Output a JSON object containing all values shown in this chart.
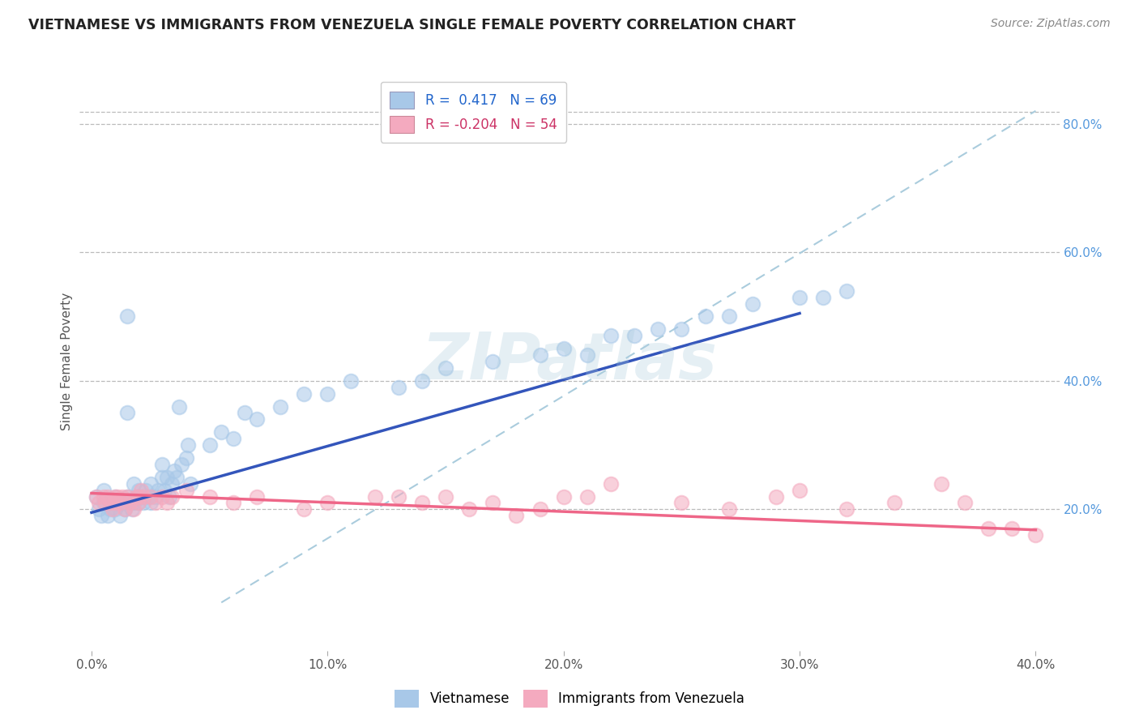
{
  "title": "VIETNAMESE VS IMMIGRANTS FROM VENEZUELA SINGLE FEMALE POVERTY CORRELATION CHART",
  "source": "Source: ZipAtlas.com",
  "ylabel": "Single Female Poverty",
  "xlim": [
    -0.005,
    0.41
  ],
  "ylim": [
    -0.02,
    0.88
  ],
  "xtick_labels": [
    "0.0%",
    "10.0%",
    "20.0%",
    "30.0%",
    "40.0%"
  ],
  "xtick_vals": [
    0.0,
    0.1,
    0.2,
    0.3,
    0.4
  ],
  "ytick_labels": [
    "20.0%",
    "40.0%",
    "60.0%",
    "80.0%"
  ],
  "ytick_vals": [
    0.2,
    0.4,
    0.6,
    0.8
  ],
  "legend_r1": "R =  0.417   N = 69",
  "legend_r2": "R = -0.204   N = 54",
  "color_blue": "#A8C8E8",
  "color_pink": "#F4AABF",
  "color_blue_line": "#3355BB",
  "color_pink_line": "#EE6688",
  "color_dashed": "#AACCDD",
  "watermark_text": "ZIPatlas",
  "background_color": "#FFFFFF",
  "grid_color": "#BBBBBB",
  "viet_blue_line_x0": 0.0,
  "viet_blue_line_y0": 0.195,
  "viet_blue_line_x1": 0.3,
  "viet_blue_line_y1": 0.505,
  "ven_pink_line_x0": 0.0,
  "ven_pink_line_y0": 0.225,
  "ven_pink_line_x1": 0.4,
  "ven_pink_line_y1": 0.168,
  "dash_line_x0": 0.055,
  "dash_line_y0": 0.055,
  "dash_line_x1": 0.4,
  "dash_line_y1": 0.82,
  "vietnamese_x": [
    0.002,
    0.003,
    0.004,
    0.005,
    0.005,
    0.007,
    0.008,
    0.009,
    0.01,
    0.01,
    0.012,
    0.013,
    0.014,
    0.015,
    0.015,
    0.015,
    0.017,
    0.018,
    0.018,
    0.019,
    0.02,
    0.02,
    0.021,
    0.022,
    0.023,
    0.024,
    0.025,
    0.025,
    0.027,
    0.028,
    0.03,
    0.03,
    0.031,
    0.032,
    0.033,
    0.034,
    0.035,
    0.036,
    0.037,
    0.038,
    0.04,
    0.041,
    0.042,
    0.05,
    0.055,
    0.06,
    0.065,
    0.07,
    0.08,
    0.09,
    0.1,
    0.11,
    0.13,
    0.14,
    0.15,
    0.17,
    0.19,
    0.2,
    0.21,
    0.22,
    0.23,
    0.24,
    0.25,
    0.26,
    0.27,
    0.28,
    0.3,
    0.31,
    0.32
  ],
  "vietnamese_y": [
    0.22,
    0.2,
    0.19,
    0.21,
    0.23,
    0.19,
    0.2,
    0.21,
    0.2,
    0.22,
    0.19,
    0.21,
    0.2,
    0.22,
    0.35,
    0.5,
    0.2,
    0.21,
    0.24,
    0.22,
    0.21,
    0.23,
    0.22,
    0.21,
    0.23,
    0.22,
    0.21,
    0.24,
    0.22,
    0.23,
    0.25,
    0.27,
    0.23,
    0.25,
    0.22,
    0.24,
    0.26,
    0.25,
    0.36,
    0.27,
    0.28,
    0.3,
    0.24,
    0.3,
    0.32,
    0.31,
    0.35,
    0.34,
    0.36,
    0.38,
    0.38,
    0.4,
    0.39,
    0.4,
    0.42,
    0.43,
    0.44,
    0.45,
    0.44,
    0.47,
    0.47,
    0.48,
    0.48,
    0.5,
    0.5,
    0.52,
    0.53,
    0.53,
    0.54
  ],
  "venezuela_x": [
    0.002,
    0.003,
    0.005,
    0.006,
    0.007,
    0.008,
    0.009,
    0.01,
    0.01,
    0.011,
    0.012,
    0.013,
    0.014,
    0.015,
    0.016,
    0.018,
    0.019,
    0.02,
    0.02,
    0.021,
    0.022,
    0.025,
    0.027,
    0.03,
    0.032,
    0.034,
    0.04,
    0.05,
    0.06,
    0.07,
    0.09,
    0.1,
    0.12,
    0.13,
    0.14,
    0.15,
    0.16,
    0.17,
    0.18,
    0.19,
    0.2,
    0.21,
    0.22,
    0.25,
    0.27,
    0.29,
    0.3,
    0.32,
    0.34,
    0.36,
    0.37,
    0.38,
    0.39,
    0.4
  ],
  "venezuela_y": [
    0.22,
    0.21,
    0.22,
    0.21,
    0.22,
    0.21,
    0.2,
    0.22,
    0.21,
    0.22,
    0.21,
    0.22,
    0.2,
    0.22,
    0.21,
    0.2,
    0.22,
    0.21,
    0.22,
    0.23,
    0.22,
    0.22,
    0.21,
    0.22,
    0.21,
    0.22,
    0.23,
    0.22,
    0.21,
    0.22,
    0.2,
    0.21,
    0.22,
    0.22,
    0.21,
    0.22,
    0.2,
    0.21,
    0.19,
    0.2,
    0.22,
    0.22,
    0.24,
    0.21,
    0.2,
    0.22,
    0.23,
    0.2,
    0.21,
    0.24,
    0.21,
    0.17,
    0.17,
    0.16
  ]
}
